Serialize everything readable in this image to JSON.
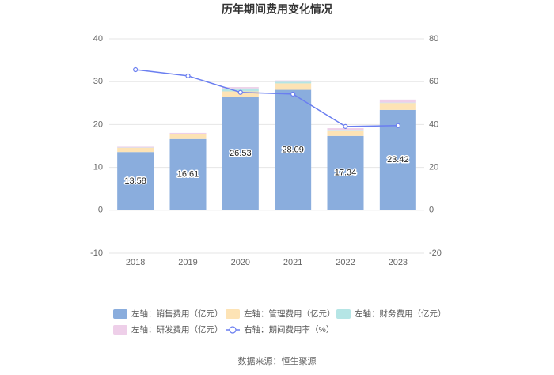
{
  "chart_data": {
    "type": "bar",
    "stacked": true,
    "title": "历年期间费用变化情况",
    "categories": [
      "2018",
      "2019",
      "2020",
      "2021",
      "2022",
      "2023"
    ],
    "series": [
      {
        "name": "左轴：销售费用（亿元）",
        "color": "#8aaddd",
        "values": [
          13.58,
          16.61,
          26.53,
          28.09,
          17.34,
          23.42
        ],
        "data_labels": true
      },
      {
        "name": "左轴：管理费用（亿元）",
        "color": "#fde3b5",
        "values": [
          1.0,
          1.2,
          1.2,
          1.5,
          1.3,
          1.6
        ]
      },
      {
        "name": "左轴：财务费用（亿元）",
        "color": "#b5e5e5",
        "values": [
          0.05,
          0.05,
          0.7,
          0.4,
          0.1,
          0.1
        ]
      },
      {
        "name": "左轴：研发费用（亿元）",
        "color": "#eecfe9",
        "values": [
          0.2,
          0.2,
          0.3,
          0.3,
          0.4,
          0.7
        ]
      },
      {
        "name": "右轴：期间费用率（%）",
        "color": "#6a7ef0",
        "type": "line",
        "axis": "y2",
        "values": [
          65.6,
          62.7,
          55.0,
          54.2,
          39.1,
          39.5
        ]
      }
    ],
    "ylim": [
      -10,
      40
    ],
    "yticks": [
      -10,
      0,
      10,
      20,
      30,
      40
    ],
    "y2lim": [
      -20,
      80
    ],
    "y2ticks": [
      -20,
      0,
      20,
      40,
      60,
      80
    ],
    "grid": true,
    "legend": "bottom",
    "source": "数据来源：恒生聚源"
  }
}
